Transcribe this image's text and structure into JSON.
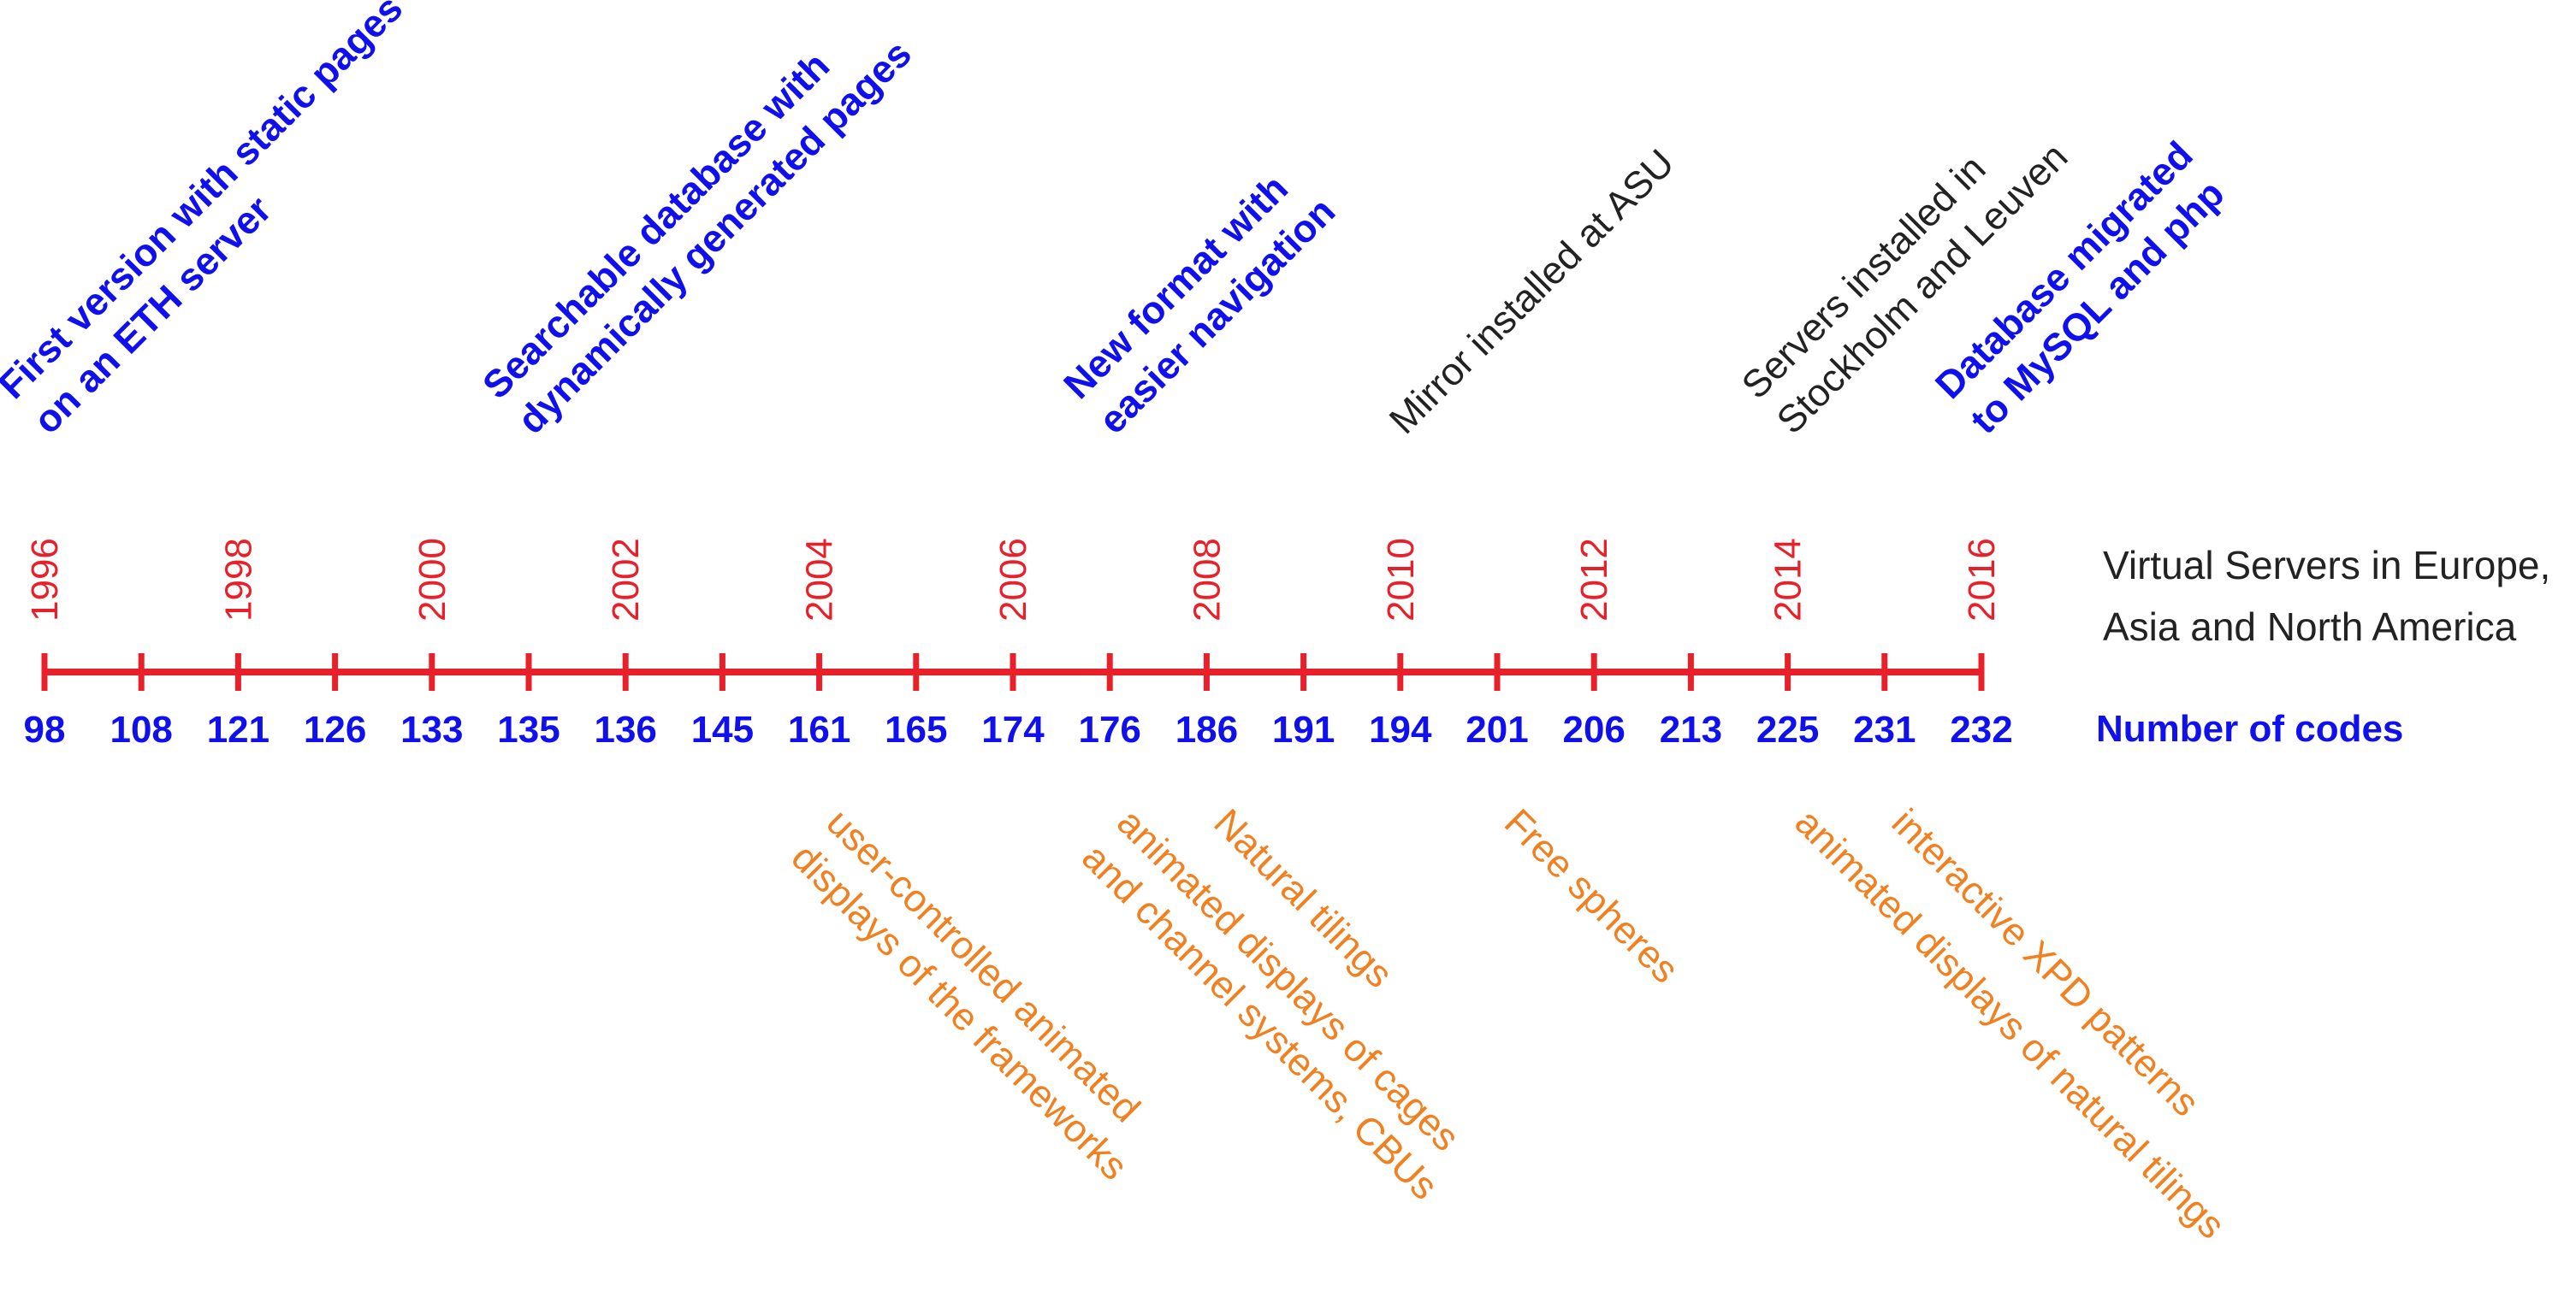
{
  "colors": {
    "axis": "#e8202a",
    "year": "#e8202a",
    "code": "#1010ee",
    "milestone_blue": "#1010ee",
    "milestone_black": "#222222",
    "feature": "#f08020"
  },
  "years": [
    "1996",
    "1998",
    "2000",
    "2002",
    "2004",
    "2006",
    "2008",
    "2010",
    "2012",
    "2014",
    "2016"
  ],
  "codes": [
    "98",
    "108",
    "121",
    "126",
    "133",
    "135",
    "136",
    "145",
    "161",
    "165",
    "174",
    "176",
    "186",
    "191",
    "194",
    "201",
    "206",
    "213",
    "225",
    "231",
    "232"
  ],
  "codes_label": "Number of codes",
  "servers_label": {
    "line1": "Virtual Servers in Europe,",
    "line2": "Asia and North America"
  },
  "milestones": [
    {
      "year": 1996.0,
      "style": "blue",
      "lines": [
        "First version with static pages",
        "on an ETH server"
      ]
    },
    {
      "year": 2001.0,
      "style": "blue",
      "lines": [
        "Searchable database with",
        "dynamically generated pages"
      ]
    },
    {
      "year": 2007.0,
      "style": "blue",
      "lines": [
        "New format with",
        "easier navigation"
      ]
    },
    {
      "year": 2010.0,
      "style": "black",
      "lines": [
        "Mirror installed at ASU"
      ]
    },
    {
      "year": 2014.0,
      "style": "black",
      "lines": [
        "Servers installed in",
        "Stockholm and Leuven"
      ]
    },
    {
      "year": 2016.0,
      "style": "blue",
      "lines": [
        "Database migrated",
        "to MySQL and php"
      ]
    }
  ],
  "features": [
    {
      "year": 2004.0,
      "lines": [
        "user-controlled animated",
        "displays of the frameworks"
      ]
    },
    {
      "year": 2007.0,
      "lines": [
        "animated displays of cages",
        "and channel systems, CBUs"
      ]
    },
    {
      "year": 2008.0,
      "lines": [
        "Natural tilings"
      ]
    },
    {
      "year": 2011.0,
      "lines": [
        "Free spheres"
      ]
    },
    {
      "year": 2015.0,
      "lines": [
        "interactive XPD patterns"
      ]
    },
    {
      "year": 2014.0,
      "lines": [
        "animated displays of natural tilings"
      ]
    }
  ]
}
